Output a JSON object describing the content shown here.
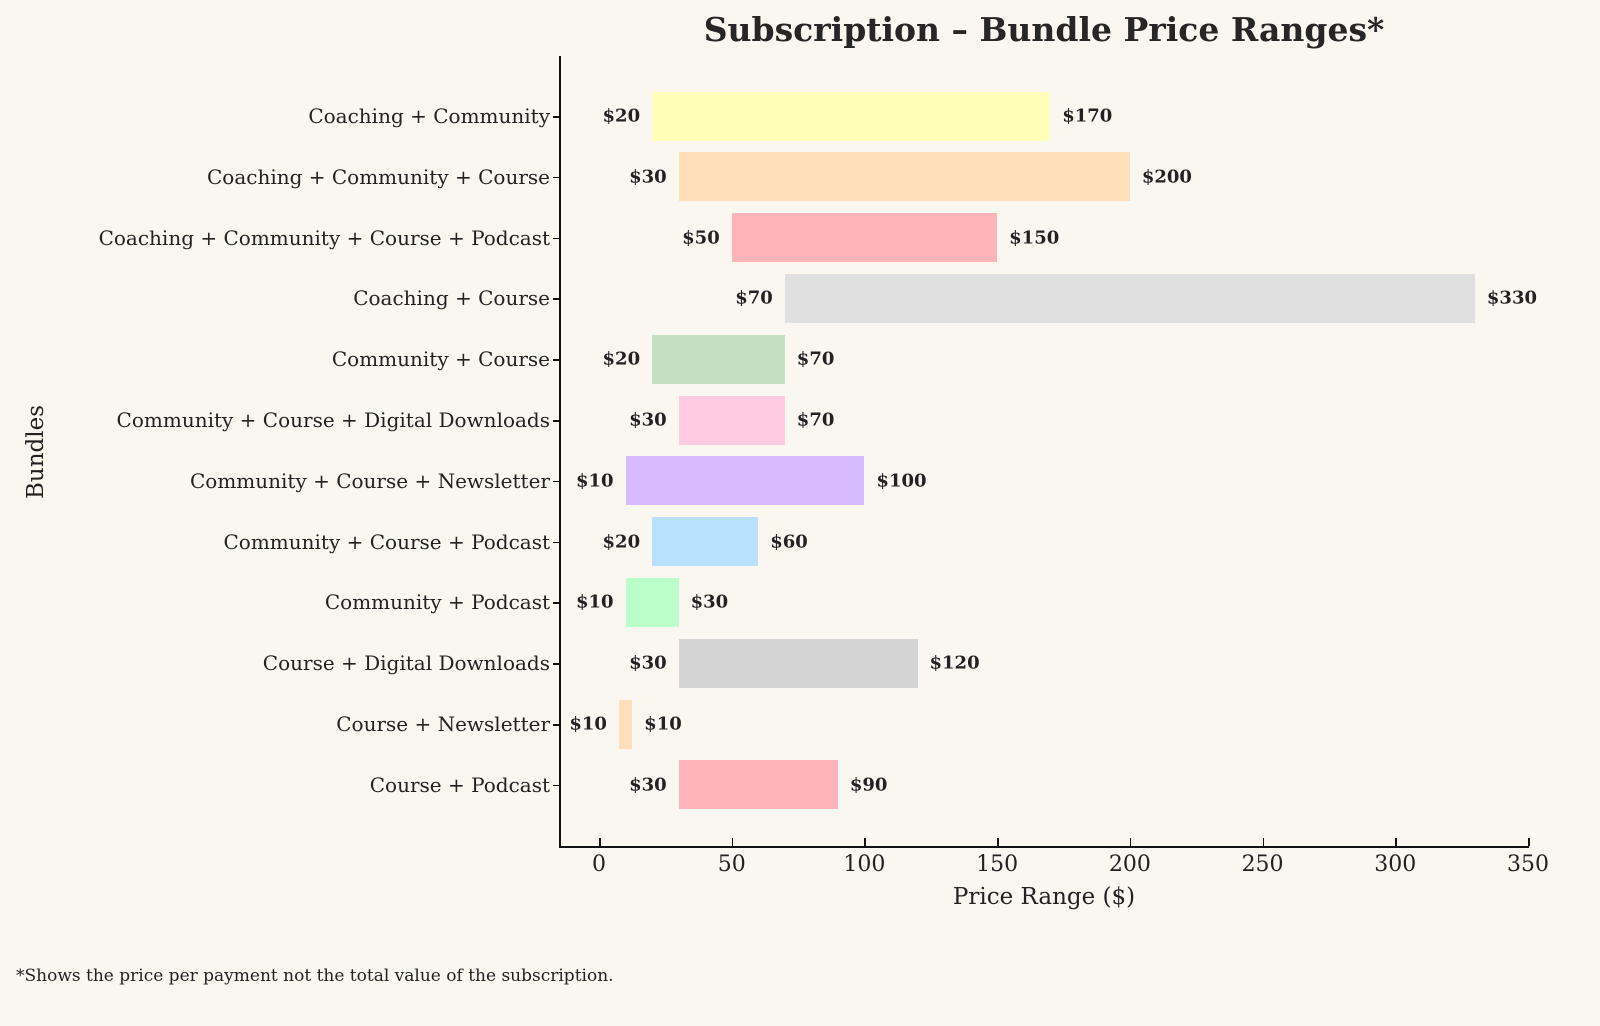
{
  "chart_data": {
    "type": "bar",
    "orientation": "horizontal-range",
    "title": "Subscription – Bundle Price Ranges*",
    "xlabel": "Price Range ($)",
    "ylabel": "Bundles",
    "xlim": [
      -15,
      350
    ],
    "xticks": [
      0,
      50,
      100,
      150,
      200,
      250,
      300,
      350
    ],
    "grid": false,
    "footnote": "*Shows the price per payment not the total value of the subscription.",
    "categories": [
      "Coaching + Community",
      "Coaching + Community + Course",
      "Coaching + Community + Course + Podcast",
      "Coaching + Course",
      "Community + Course",
      "Community + Course + Digital Downloads",
      "Community + Course + Newsletter",
      "Community + Course + Podcast",
      "Community + Podcast",
      "Course + Digital Downloads",
      "Course + Newsletter",
      "Course + Podcast"
    ],
    "series": [
      {
        "name": "min_price",
        "values": [
          20,
          30,
          50,
          70,
          20,
          30,
          10,
          20,
          10,
          30,
          10,
          30
        ]
      },
      {
        "name": "max_price",
        "values": [
          170,
          200,
          150,
          330,
          70,
          70,
          100,
          60,
          30,
          120,
          10,
          90
        ]
      }
    ],
    "colors": [
      "#ffffb9",
      "#ffdfb9",
      "#ffb3ba",
      "#e0e0e0",
      "#c3e0c3",
      "#ffcbe3",
      "#d8bbff",
      "#bae0ff",
      "#baffc9",
      "#d4d4d4",
      "#ffdfb9",
      "#ffb3ba"
    ]
  },
  "labels": {
    "min": [
      "$20",
      "$30",
      "$50",
      "$70",
      "$20",
      "$30",
      "$10",
      "$20",
      "$10",
      "$30",
      "$10",
      "$30"
    ],
    "max": [
      "$170",
      "$200",
      "$150",
      "$330",
      "$70",
      "$70",
      "$100",
      "$60",
      "$30",
      "$120",
      "$10",
      "$90"
    ]
  },
  "xtick_labels": [
    "0",
    "50",
    "100",
    "150",
    "200",
    "250",
    "300",
    "350"
  ]
}
